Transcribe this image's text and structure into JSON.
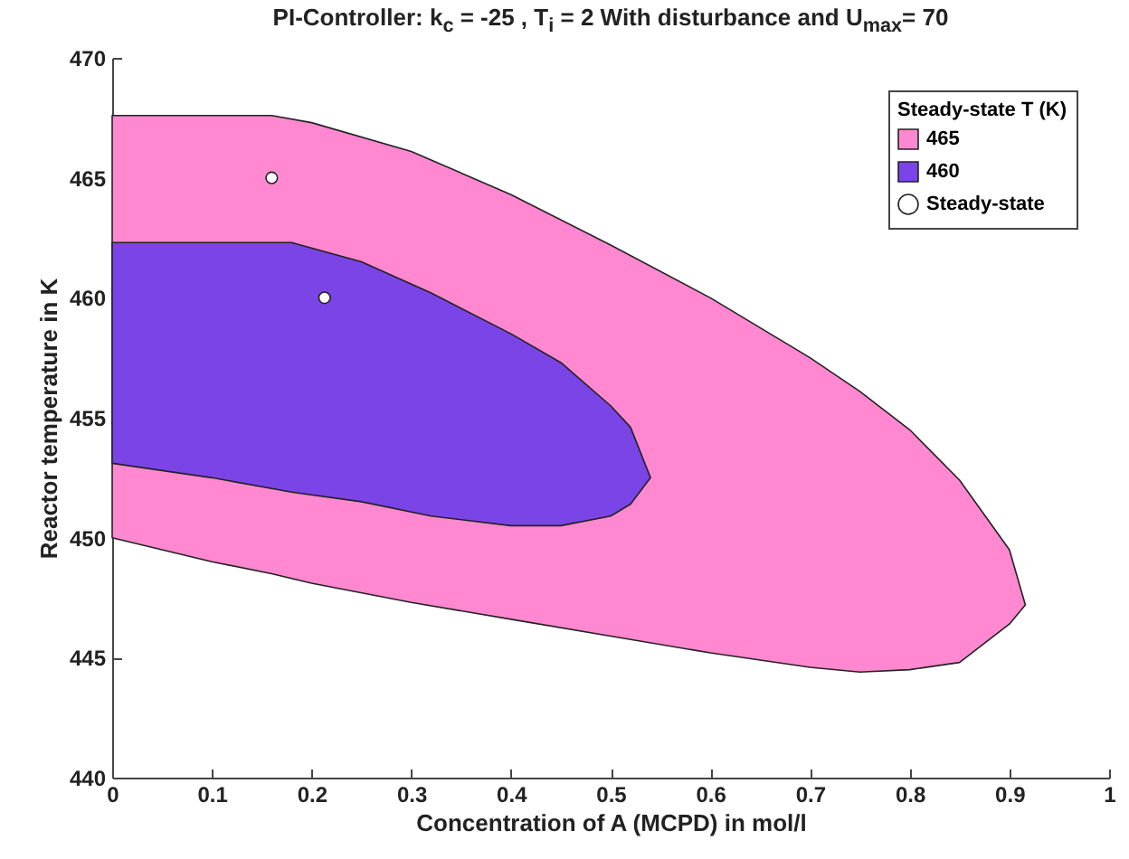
{
  "chart_data": {
    "type": "area",
    "title": "PI-Controller: k$_{c}$ = -25 , T$_{i}$ = 2  With disturbance and U$_{max}$= 70",
    "xlabel": "Concentration of A (MCPD) in mol/l",
    "ylabel": "Reactor temperature in K",
    "legend_title": "Steady-state T (K)",
    "xlim": [
      0,
      1
    ],
    "xticks": [
      0,
      0.1,
      0.2,
      0.3,
      0.4,
      0.5,
      0.6,
      0.7,
      0.8,
      0.9,
      1
    ],
    "ylim": [
      440,
      470
    ],
    "yticks": [
      440,
      445,
      450,
      455,
      460,
      465,
      470
    ],
    "grid": false,
    "legend": "top right",
    "series": [
      {
        "name": "465",
        "color": "#ff88d0",
        "x": [
          0,
          0.1,
          0.16,
          0.2,
          0.3,
          0.4,
          0.5,
          0.6,
          0.7,
          0.75,
          0.8,
          0.85,
          0.9,
          0.916
        ],
        "values": [
          null,
          null,
          null,
          null,
          null,
          null,
          null,
          null,
          null,
          null,
          null,
          null,
          null,
          null
        ],
        "upper": [
          467.6,
          467.6,
          467.6,
          467.3,
          466.1,
          464.3,
          462.2,
          460.0,
          457.5,
          456.1,
          454.5,
          452.4,
          449.5,
          447.2
        ],
        "lower": [
          450.0,
          449.0,
          448.5,
          448.1,
          447.3,
          446.6,
          445.9,
          445.2,
          444.6,
          444.4,
          444.5,
          444.8,
          446.4,
          447.2
        ]
      },
      {
        "name": "460",
        "color": "#7b44e6",
        "x": [
          0,
          0.1,
          0.18,
          0.25,
          0.32,
          0.4,
          0.45,
          0.5,
          0.52,
          0.54
        ],
        "values": [
          null,
          null,
          null,
          null,
          null,
          null,
          null,
          null,
          null,
          null
        ],
        "upper": [
          462.3,
          462.3,
          462.3,
          461.5,
          460.2,
          458.5,
          457.3,
          455.5,
          454.6,
          452.5
        ],
        "lower": [
          453.1,
          452.5,
          451.9,
          451.5,
          450.9,
          450.5,
          450.5,
          450.9,
          451.4,
          452.5
        ]
      },
      {
        "name": "Steady-state",
        "type": "scatter",
        "marker": "circle",
        "color": "#ffffff",
        "x": [
          0.16,
          0.213
        ],
        "values": [
          465,
          460
        ]
      }
    ]
  }
}
